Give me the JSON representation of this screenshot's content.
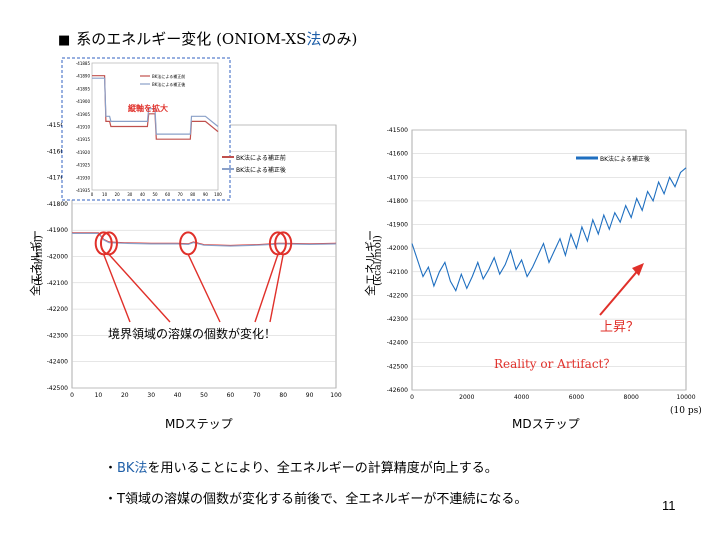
{
  "slide": {
    "title_prefix": "■",
    "title_main": "系のエネルギー変化 (ONIOM-XS",
    "title_hl": "法",
    "title_end": "のみ)",
    "page_number": "11",
    "bullets": [
      {
        "mark": "・",
        "hl": "BK法",
        "text": "を用いることにより、全エネルギーの計算精度が向上する。"
      },
      {
        "mark": "・",
        "hl": "",
        "text": "T領域の溶媒の個数が変化する前後で、全エネルギーが不連続になる。"
      }
    ],
    "colors": {
      "accent": "#1f5fa8",
      "red": "#e0302a",
      "line_blue": "#1f6fc0",
      "inset_red": "#c0504d",
      "inset_blue": "#8aa0c8"
    }
  },
  "chart_data": [
    {
      "type": "line",
      "id": "left",
      "xlabel": "MDステップ",
      "ylabel": "全エネルギー",
      "ylabel_unit": "(kcal/mol)",
      "xlim": [
        0,
        100
      ],
      "ylim": [
        -42500,
        -41500
      ],
      "x_ticks": [
        "0",
        "10",
        "20",
        "30",
        "40",
        "50",
        "60",
        "70",
        "80",
        "90",
        "100"
      ],
      "y_ticks": [
        "-41500",
        "-41600",
        "-41700",
        "-41800",
        "-41900",
        "-42000",
        "-42100",
        "-42200",
        "-42300",
        "-42400",
        "-42500"
      ],
      "series": [
        {
          "color": "#e0302a",
          "x": [
            0,
            5,
            10,
            12,
            14,
            20,
            30,
            40,
            44,
            46,
            50,
            60,
            70,
            76,
            78,
            80,
            90,
            100
          ],
          "y": [
            -41910,
            -41910,
            -41910,
            -41935,
            -41945,
            -41948,
            -41950,
            -41950,
            -41952,
            -41945,
            -41955,
            -41958,
            -41955,
            -41952,
            -41950,
            -41950,
            -41952,
            -41950
          ]
        },
        {
          "color": "#8aa0c8",
          "x": [
            0,
            5,
            10,
            12,
            14,
            20,
            30,
            40,
            44,
            46,
            50,
            60,
            70,
            76,
            78,
            80,
            90,
            100
          ],
          "y": [
            -41912,
            -41912,
            -41912,
            -41937,
            -41947,
            -41950,
            -41952,
            -41952,
            -41954,
            -41947,
            -41957,
            -41960,
            -41957,
            -41954,
            -41952,
            -41952,
            -41954,
            -41952
          ]
        }
      ],
      "annotation": "境界領域の溶媒の個数が変化！",
      "highlights_x": [
        12,
        14,
        44,
        78,
        80
      ]
    },
    {
      "type": "line",
      "id": "inset",
      "note": "縦軸を拡大",
      "xlim": [
        0,
        100
      ],
      "x_ticks": [
        "0",
        "10",
        "20",
        "30",
        "40",
        "50",
        "60",
        "70",
        "80",
        "90",
        "100"
      ],
      "y_ticks": [
        "-41885",
        "-41890",
        "-41895",
        "-41900",
        "-41905",
        "-41910",
        "-41915",
        "-41920",
        "-41925",
        "-41930",
        "-41935"
      ],
      "legend": [
        "BK法による補正前",
        "BK法による補正後"
      ],
      "legend_small": [
        "BK法による補正前",
        "BK法による補正後"
      ],
      "series": [
        {
          "name": "BK法による補正前",
          "color": "#c0504d",
          "x": [
            0,
            10,
            11,
            14,
            15,
            20,
            44,
            45,
            50,
            51,
            52,
            78,
            79,
            90,
            100
          ],
          "y": [
            -41890,
            -41890,
            -41908,
            -41908,
            -41910,
            -41910,
            -41910,
            -41905,
            -41905,
            -41915,
            -41915,
            -41915,
            -41908,
            -41908,
            -41912
          ]
        },
        {
          "name": "BK法による補正後",
          "color": "#8aa0c8",
          "x": [
            0,
            10,
            11,
            14,
            15,
            20,
            44,
            45,
            50,
            51,
            52,
            78,
            79,
            90,
            100
          ],
          "y": [
            -41891,
            -41891,
            -41906,
            -41906,
            -41908,
            -41908,
            -41908,
            -41903,
            -41903,
            -41913,
            -41913,
            -41913,
            -41906,
            -41906,
            -41910
          ]
        }
      ]
    },
    {
      "type": "line",
      "id": "right",
      "xlabel": "MDステップ",
      "x_unit": "(10 ps)",
      "ylabel": "全エネルギー",
      "ylabel_unit": "(kcal/mol)",
      "xlim": [
        0,
        10000
      ],
      "ylim": [
        -42600,
        -41500
      ],
      "x_ticks": [
        "0",
        "2000",
        "4000",
        "6000",
        "8000",
        "10000"
      ],
      "y_ticks": [
        "-41500",
        "-41600",
        "-41700",
        "-41800",
        "-41900",
        "-42000",
        "-42100",
        "-42200",
        "-42300",
        "-42400",
        "-42500",
        "-42600"
      ],
      "legend": [
        "BK法による補正後"
      ],
      "series": [
        {
          "name": "BK法による補正後",
          "color": "#1f6fc0",
          "x": [
            0,
            200,
            400,
            600,
            800,
            1000,
            1200,
            1400,
            1600,
            1800,
            2000,
            2200,
            2400,
            2600,
            2800,
            3000,
            3200,
            3400,
            3600,
            3800,
            4000,
            4200,
            4400,
            4600,
            4800,
            5000,
            5200,
            5400,
            5600,
            5800,
            6000,
            6200,
            6400,
            6600,
            6800,
            7000,
            7200,
            7400,
            7600,
            7800,
            8000,
            8200,
            8400,
            8600,
            8800,
            9000,
            9200,
            9400,
            9600,
            9800,
            10000
          ],
          "y": [
            -41980,
            -42050,
            -42120,
            -42080,
            -42160,
            -42100,
            -42060,
            -42140,
            -42180,
            -42110,
            -42170,
            -42120,
            -42060,
            -42130,
            -42090,
            -42040,
            -42110,
            -42070,
            -42010,
            -42090,
            -42050,
            -42120,
            -42080,
            -42030,
            -41980,
            -42060,
            -42010,
            -41960,
            -42030,
            -41940,
            -42000,
            -41910,
            -41970,
            -41880,
            -41940,
            -41860,
            -41920,
            -41850,
            -41890,
            -41820,
            -41870,
            -41790,
            -41840,
            -41760,
            -41800,
            -41720,
            -41770,
            -41700,
            -41740,
            -41680,
            -41660
          ]
        }
      ],
      "annotation1": "上昇？",
      "annotation2": "Reality or Artifact？"
    }
  ]
}
